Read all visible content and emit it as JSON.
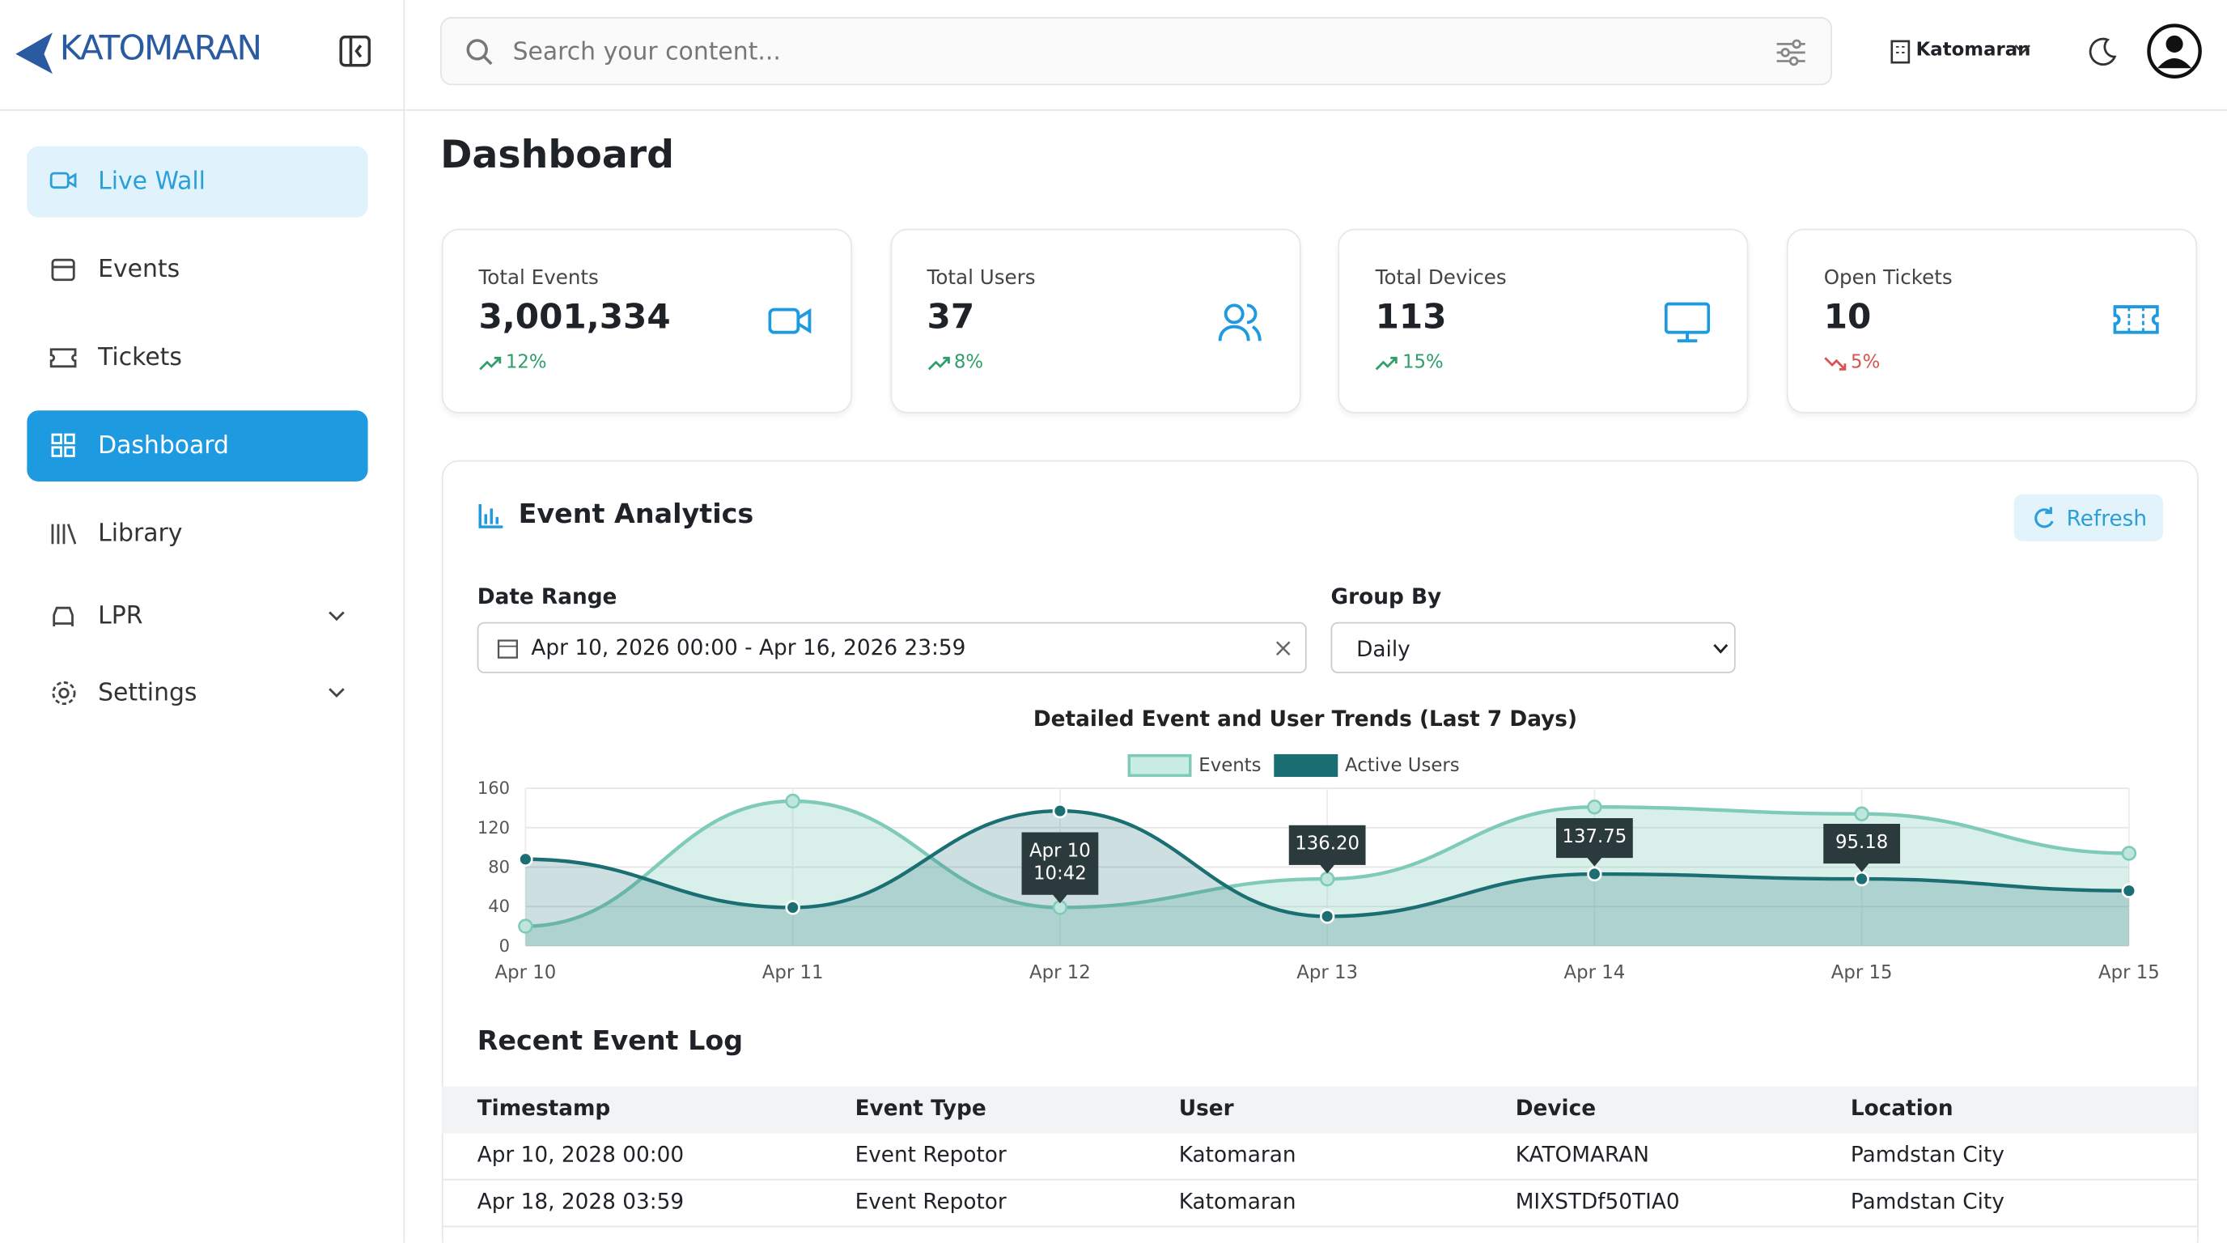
{
  "brand": "KATOMARAN",
  "nav": [
    "Live Wall",
    "Events",
    "Tickets",
    "Dashboard",
    "Library",
    "LPR",
    "Settings"
  ],
  "header": {
    "search_placeholder": "Search your content...",
    "org": "Katomaran"
  },
  "page_title": "Dashboard",
  "stats": [
    {
      "label": "Total Events",
      "value": "3,001,334",
      "change": "12%"
    },
    {
      "label": "Total Users",
      "value": "37",
      "change": "8%"
    },
    {
      "label": "Total Devices",
      "value": "113",
      "change": "15%"
    },
    {
      "label": "Open Tickets",
      "value": "10",
      "change": "5%"
    }
  ],
  "analytics": {
    "title": "Event Analytics",
    "refresh": "Refresh",
    "date_range_label": "Date Range",
    "date_range_value": "Apr 10, 2026 00:00 - Apr 16, 2026 23:59",
    "group_by_label": "Group By",
    "group_by_value": "Daily"
  },
  "chart_data": {
    "type": "area",
    "title": "Detailed Event and User Trends (Last 7 Days)",
    "categories": [
      "Apr 10",
      "Apr 11",
      "Apr 12",
      "Apr 13",
      "Apr 14",
      "Apr 15",
      "Apr 15"
    ],
    "series": [
      {
        "name": "Events",
        "color": "#7fcbb8",
        "values": [
          20,
          147,
          39,
          68,
          141,
          134,
          94
        ]
      },
      {
        "name": "Active Users",
        "color": "#1b6f73",
        "values": [
          88,
          39,
          137,
          30,
          73,
          68,
          56
        ]
      }
    ],
    "ylim": [
      0,
      160
    ],
    "yticks": [
      0,
      40,
      80,
      120,
      160
    ],
    "grid": true,
    "annotations": [
      [
        "Apr 10",
        "10:42"
      ],
      [
        "136.20"
      ],
      [
        "137.75"
      ],
      [
        "95.18"
      ]
    ]
  },
  "log": {
    "title": "Recent Event Log",
    "headers": [
      "Timestamp",
      "Event Type",
      "User",
      "Device",
      "Location"
    ],
    "rows": [
      [
        "Apr 10, 2028 00:00",
        "Event Repotor",
        "Katomaran",
        "KATOMARAN",
        "Pamdstan City"
      ],
      [
        "Apr 18, 2028 03:59",
        "Event Repotor",
        "Katomaran",
        "MIXSTDf50TIA0",
        "Pamdstan City"
      ]
    ]
  }
}
